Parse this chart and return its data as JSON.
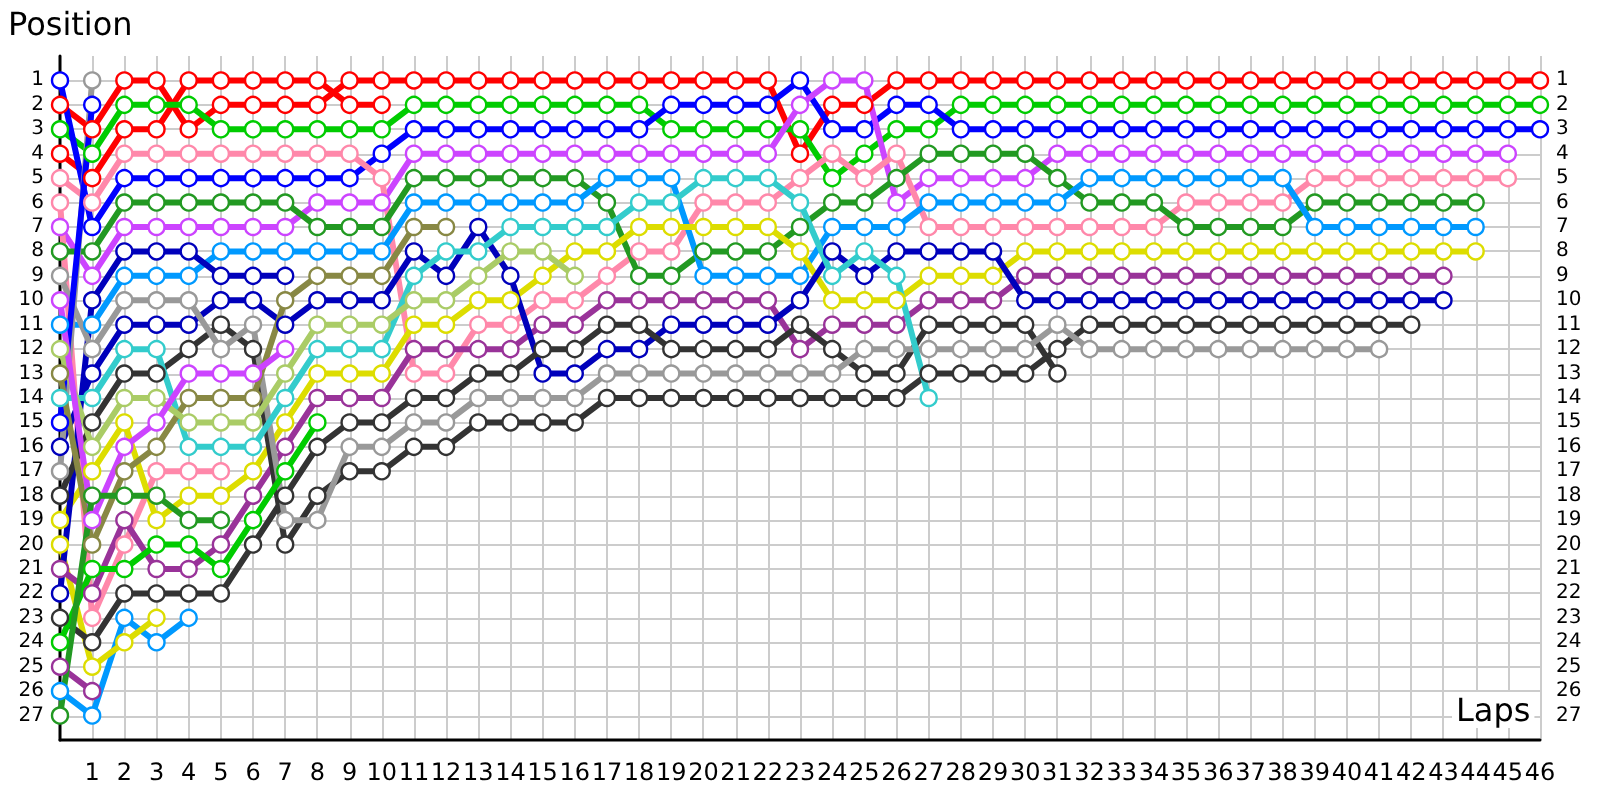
{
  "chart_data": {
    "type": "line",
    "xlabel": "Laps",
    "ylabel": "Position",
    "grid": true,
    "marker": "circle",
    "line_style": "solid",
    "x": [
      0,
      1,
      2,
      3,
      4,
      5,
      6,
      7,
      8,
      9,
      10,
      11,
      12,
      13,
      14,
      15,
      16,
      17,
      18,
      19,
      20,
      21,
      22,
      23,
      24,
      25,
      26,
      27,
      28,
      29,
      30,
      31,
      32,
      33,
      34,
      35,
      36,
      37,
      38,
      39,
      40,
      41,
      42,
      43,
      44,
      45,
      46
    ],
    "xlim": [
      0,
      46
    ],
    "xticks": [
      1,
      2,
      3,
      4,
      5,
      6,
      7,
      8,
      9,
      10,
      11,
      12,
      13,
      14,
      15,
      16,
      17,
      18,
      19,
      20,
      21,
      22,
      23,
      24,
      25,
      26,
      27,
      28,
      29,
      30,
      31,
      32,
      33,
      34,
      35,
      36,
      37,
      38,
      39,
      40,
      41,
      42,
      43,
      44,
      45,
      46
    ],
    "ylim": [
      28,
      0
    ],
    "yticks": [
      1,
      2,
      3,
      4,
      5,
      6,
      7,
      8,
      9,
      10,
      11,
      12,
      13,
      14,
      15,
      16,
      17,
      18,
      19,
      20,
      21,
      22,
      23,
      24,
      25,
      26,
      27
    ],
    "y2lim": [
      28,
      0
    ],
    "y2ticks": [
      1,
      2,
      3,
      4,
      5,
      6,
      7,
      8,
      9,
      10,
      11,
      12,
      13,
      14,
      15,
      16,
      17,
      18,
      19,
      20,
      21,
      22,
      23,
      24,
      25,
      26,
      27
    ],
    "series": [
      {
        "color": "#ff0000",
        "values": [
          2,
          3,
          1,
          1,
          3,
          2,
          2,
          2,
          2,
          1,
          1,
          1,
          1,
          1,
          1,
          1,
          1,
          1,
          1,
          1,
          1,
          1,
          1,
          4,
          2,
          2,
          1,
          1,
          1,
          1,
          1,
          1,
          1,
          1,
          1,
          1,
          1,
          1,
          1,
          1,
          1,
          1,
          1,
          1,
          1,
          1,
          1
        ]
      },
      {
        "color": "#ff0000",
        "x": [
          0,
          1,
          2,
          3,
          4,
          5,
          6,
          7,
          8,
          9,
          10
        ],
        "values": [
          4,
          5,
          3,
          3,
          1,
          1,
          1,
          1,
          1,
          2,
          2
        ]
      },
      {
        "color": "#00cc00",
        "values": [
          3,
          4,
          2,
          2,
          2,
          3,
          3,
          3,
          3,
          3,
          3,
          2,
          2,
          2,
          2,
          2,
          2,
          2,
          2,
          3,
          3,
          3,
          3,
          3,
          5,
          4,
          3,
          3,
          2,
          2,
          2,
          2,
          2,
          2,
          2,
          2,
          2,
          2,
          2,
          2,
          2,
          2,
          2,
          2,
          2,
          2,
          2
        ]
      },
      {
        "color": "#0000ff",
        "values": [
          1,
          7,
          5,
          5,
          5,
          5,
          5,
          5,
          5,
          5,
          4,
          3,
          3,
          3,
          3,
          3,
          3,
          3,
          3,
          2,
          2,
          2,
          2,
          1,
          3,
          3,
          2,
          2,
          3,
          3,
          3,
          3,
          3,
          3,
          3,
          3,
          3,
          3,
          3,
          3,
          3,
          3,
          3,
          3,
          3,
          3,
          3
        ]
      },
      {
        "color": "#cc44ff",
        "values": [
          7,
          9,
          7,
          7,
          7,
          7,
          7,
          7,
          6,
          6,
          6,
          4,
          4,
          4,
          4,
          4,
          4,
          4,
          4,
          4,
          4,
          4,
          4,
          2,
          1,
          1,
          6,
          5,
          5,
          5,
          5,
          4,
          4,
          4,
          4,
          4,
          4,
          4,
          4,
          4,
          4,
          4,
          4,
          4,
          4,
          4,
          null
        ]
      },
      {
        "color": "#ff88aa",
        "values": [
          5,
          6,
          4,
          4,
          4,
          4,
          4,
          4,
          4,
          4,
          5,
          13,
          13,
          11,
          11,
          10,
          10,
          9,
          8,
          8,
          6,
          6,
          6,
          5,
          4,
          5,
          4,
          7,
          7,
          7,
          7,
          7,
          7,
          7,
          7,
          6,
          6,
          6,
          6,
          5,
          5,
          5,
          5,
          5,
          5,
          5,
          null
        ]
      },
      {
        "color": "#ff88aa",
        "x": [
          0,
          1,
          2,
          3,
          4,
          5
        ],
        "values": [
          6,
          23,
          20,
          17,
          17,
          17
        ]
      },
      {
        "color": "#229922",
        "values": [
          8,
          8,
          6,
          6,
          6,
          6,
          6,
          6,
          7,
          7,
          7,
          5,
          5,
          5,
          5,
          5,
          5,
          6,
          9,
          9,
          8,
          8,
          8,
          7,
          6,
          6,
          5,
          4,
          4,
          4,
          4,
          5,
          6,
          6,
          6,
          7,
          7,
          7,
          7,
          6,
          6,
          6,
          6,
          6,
          6,
          null,
          null
        ]
      },
      {
        "color": "#0099ff",
        "values": [
          11,
          11,
          9,
          9,
          9,
          8,
          8,
          8,
          8,
          8,
          8,
          6,
          6,
          6,
          6,
          6,
          6,
          5,
          5,
          5,
          9,
          9,
          9,
          9,
          7,
          7,
          7,
          6,
          6,
          6,
          6,
          6,
          5,
          5,
          5,
          5,
          5,
          5,
          5,
          7,
          7,
          7,
          7,
          7,
          7,
          null,
          null
        ]
      },
      {
        "color": "#0099ff",
        "x": [
          0,
          1,
          2,
          3,
          4
        ],
        "values": [
          26,
          27,
          23,
          24,
          23
        ]
      },
      {
        "color": "#dddd00",
        "values": [
          19,
          17,
          15,
          19,
          18,
          18,
          17,
          15,
          13,
          13,
          13,
          11,
          11,
          10,
          10,
          9,
          8,
          8,
          7,
          7,
          7,
          7,
          7,
          8,
          10,
          10,
          10,
          9,
          9,
          9,
          8,
          8,
          8,
          8,
          8,
          8,
          8,
          8,
          8,
          8,
          8,
          8,
          8,
          8,
          8,
          null,
          null
        ]
      },
      {
        "color": "#dddd00",
        "x": [
          0,
          1,
          2,
          3
        ],
        "values": [
          20,
          25,
          24,
          23
        ]
      },
      {
        "color": "#993399",
        "values": [
          21,
          22,
          19,
          21,
          21,
          20,
          18,
          16,
          14,
          14,
          14,
          12,
          12,
          12,
          12,
          11,
          11,
          10,
          10,
          10,
          10,
          10,
          10,
          12,
          11,
          11,
          11,
          10,
          10,
          10,
          9,
          9,
          9,
          9,
          9,
          9,
          9,
          9,
          9,
          9,
          9,
          9,
          9,
          9,
          null,
          null,
          null
        ]
      },
      {
        "color": "#993399",
        "x": [
          0,
          1
        ],
        "values": [
          25,
          26
        ]
      },
      {
        "color": "#0000bb",
        "values": [
          16,
          13,
          11,
          11,
          11,
          10,
          10,
          11,
          10,
          10,
          10,
          8,
          9,
          7,
          9,
          13,
          13,
          12,
          12,
          11,
          11,
          11,
          11,
          10,
          8,
          9,
          8,
          8,
          8,
          8,
          10,
          10,
          10,
          10,
          10,
          10,
          10,
          10,
          10,
          10,
          10,
          10,
          10,
          10,
          null,
          null,
          null
        ]
      },
      {
        "color": "#0000bb",
        "x": [
          0,
          1,
          2,
          3,
          4,
          5,
          6,
          7
        ],
        "values": [
          22,
          10,
          8,
          8,
          8,
          9,
          9,
          9
        ]
      },
      {
        "color": "#333333",
        "x": [
          0,
          1,
          2,
          3,
          4,
          5,
          6,
          7,
          8,
          9,
          10,
          11,
          12,
          13,
          14,
          15,
          16,
          17,
          18,
          19,
          20,
          21,
          22,
          23,
          24,
          25,
          26,
          27,
          28,
          29,
          30,
          31
        ],
        "values": [
          23,
          24,
          22,
          22,
          22,
          22,
          20,
          18,
          16,
          15,
          15,
          14,
          14,
          13,
          13,
          12,
          12,
          11,
          11,
          12,
          12,
          12,
          12,
          11,
          12,
          13,
          13,
          11,
          11,
          11,
          11,
          13
        ]
      },
      {
        "color": "#333333",
        "values": [
          18,
          15,
          13,
          13,
          12,
          11,
          12,
          20,
          18,
          17,
          17,
          16,
          16,
          15,
          15,
          15,
          15,
          14,
          14,
          14,
          14,
          14,
          14,
          14,
          14,
          14,
          14,
          13,
          13,
          13,
          13,
          12,
          11,
          11,
          11,
          11,
          11,
          11,
          11,
          11,
          11,
          11,
          11,
          null,
          null,
          null,
          null
        ]
      },
      {
        "color": "#999999",
        "values": [
          9,
          12,
          10,
          10,
          10,
          12,
          11,
          19,
          19,
          16,
          16,
          15,
          15,
          14,
          14,
          14,
          14,
          13,
          13,
          13,
          13,
          13,
          13,
          13,
          13,
          12,
          12,
          12,
          12,
          12,
          12,
          11,
          12,
          12,
          12,
          12,
          12,
          12,
          12,
          12,
          12,
          12,
          null,
          null,
          null,
          null,
          null
        ]
      },
      {
        "color": "#999999",
        "x": [
          0,
          1
        ],
        "values": [
          17,
          1
        ]
      },
      {
        "color": "#0000ff",
        "x": [
          0,
          1
        ],
        "values": [
          15,
          2
        ]
      },
      {
        "color": "#33cccc",
        "x": [
          0,
          1,
          2,
          3,
          4,
          5,
          6,
          7,
          8,
          9,
          10,
          11,
          12,
          13,
          14,
          15,
          16,
          17,
          18,
          19,
          20,
          21,
          22,
          23,
          24,
          25,
          26,
          27
        ],
        "values": [
          14,
          14,
          12,
          12,
          16,
          16,
          16,
          14,
          12,
          12,
          12,
          9,
          8,
          8,
          7,
          7,
          7,
          7,
          6,
          6,
          5,
          5,
          5,
          6,
          9,
          8,
          9,
          14
        ]
      },
      {
        "color": "#888844",
        "x": [
          0,
          1,
          2,
          3,
          4,
          5,
          6,
          7,
          8,
          9,
          10,
          11,
          12
        ],
        "values": [
          13,
          20,
          17,
          16,
          14,
          14,
          14,
          10,
          9,
          9,
          9,
          7,
          7
        ]
      },
      {
        "color": "#aacc66",
        "x": [
          0,
          1,
          2,
          3,
          4,
          5,
          6,
          7,
          8,
          9,
          10,
          11,
          12,
          13,
          14,
          15,
          16
        ],
        "values": [
          12,
          16,
          14,
          14,
          15,
          15,
          15,
          13,
          11,
          11,
          11,
          10,
          10,
          9,
          8,
          8,
          9
        ]
      },
      {
        "color": "#cc44ff",
        "x": [
          0,
          1,
          2,
          3,
          4,
          5,
          6,
          7
        ],
        "values": [
          10,
          19,
          16,
          15,
          13,
          13,
          13,
          12
        ]
      },
      {
        "color": "#00cc00",
        "x": [
          0,
          1,
          2,
          3,
          4,
          5,
          6,
          7,
          8
        ],
        "values": [
          24,
          21,
          21,
          20,
          20,
          21,
          19,
          17,
          15
        ]
      },
      {
        "color": "#229922",
        "x": [
          0,
          1,
          2,
          3,
          4,
          5
        ],
        "values": [
          27,
          18,
          18,
          18,
          19,
          19
        ]
      }
    ]
  }
}
